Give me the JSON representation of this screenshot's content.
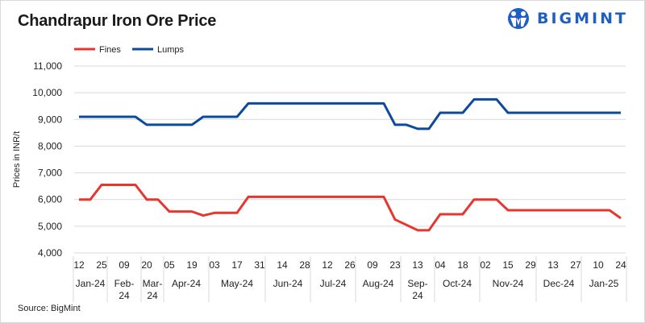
{
  "title": "Chandrapur Iron Ore Price",
  "logo_text": "BIGMINT",
  "source": "Source: BigMint",
  "colors": {
    "fines": "#e8352e",
    "lumps": "#0b4a9c",
    "grid": "#d9d9d9",
    "brand": "#1f5fbf"
  },
  "chart_data": {
    "type": "line",
    "title": "Chandrapur Iron Ore Price",
    "ylabel": "Prices in INR/t",
    "xlabel": "",
    "ylim": [
      4000,
      11000
    ],
    "yticks": [
      "4,000",
      "5,000",
      "6,000",
      "7,000",
      "8,000",
      "9,000",
      "10,000",
      "11,000"
    ],
    "grid": "horizontal",
    "legend": "top-left",
    "x_tick_labels": [
      "12",
      "25",
      "09",
      "20",
      "05",
      "19",
      "03",
      "17",
      "31",
      "14",
      "28",
      "12",
      "26",
      "09",
      "23",
      "13",
      "04",
      "18",
      "02",
      "15",
      "29",
      "13",
      "27",
      "10",
      "24"
    ],
    "months": [
      {
        "label": "Jan-24",
        "points": 3
      },
      {
        "label": "Feb-24",
        "points": 3
      },
      {
        "label": "Mar-24",
        "points": 2
      },
      {
        "label": "Apr-24",
        "points": 4
      },
      {
        "label": "May-24",
        "points": 5
      },
      {
        "label": "Jun-24",
        "points": 4
      },
      {
        "label": "Jul-24",
        "points": 4
      },
      {
        "label": "Aug-24",
        "points": 4
      },
      {
        "label": "Sep-24",
        "points": 3
      },
      {
        "label": "Oct-24",
        "points": 4
      },
      {
        "label": "Nov-24",
        "points": 5
      },
      {
        "label": "Dec-24",
        "points": 4
      },
      {
        "label": "Jan-25",
        "points": 4
      }
    ],
    "series": [
      {
        "name": "Fines",
        "color": "#e8352e",
        "values": [
          6000,
          6000,
          6550,
          6550,
          6550,
          6550,
          6000,
          6000,
          5550,
          5550,
          5550,
          5400,
          5500,
          5500,
          5500,
          6100,
          6100,
          6100,
          6100,
          6100,
          6100,
          6100,
          6100,
          6100,
          6100,
          6100,
          6100,
          6100,
          5250,
          5050,
          4850,
          4850,
          5450,
          5450,
          5450,
          6000,
          6000,
          6000,
          5600,
          5600,
          5600,
          5600,
          5600,
          5600,
          5600,
          5600,
          5600,
          5600,
          5300
        ]
      },
      {
        "name": "Lumps",
        "color": "#0b4a9c",
        "values": [
          9100,
          9100,
          9100,
          9100,
          9100,
          9100,
          8800,
          8800,
          8800,
          8800,
          8800,
          9100,
          9100,
          9100,
          9100,
          9600,
          9600,
          9600,
          9600,
          9600,
          9600,
          9600,
          9600,
          9600,
          9600,
          9600,
          9600,
          9600,
          8800,
          8800,
          8650,
          8650,
          9250,
          9250,
          9250,
          9750,
          9750,
          9750,
          9250,
          9250,
          9250,
          9250,
          9250,
          9250,
          9250,
          9250,
          9250,
          9250,
          9250
        ]
      }
    ]
  }
}
